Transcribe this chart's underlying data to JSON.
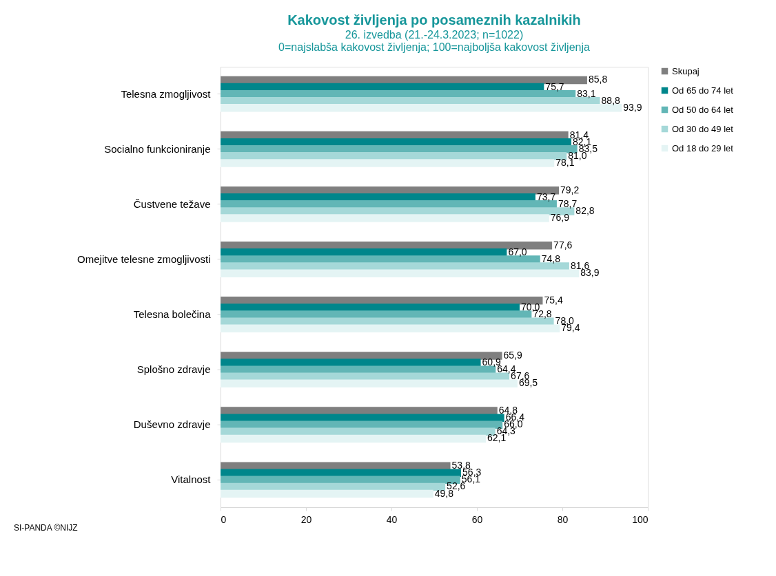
{
  "chart_data": {
    "type": "bar",
    "orientation": "horizontal",
    "title": "Kakovost življenja po posameznih kazalnikih",
    "subtitle": "26. izvedba (21.-24.3.2023; n=1022)\n0=najslabša kakovost življenja; 100=najboljša kakovost življenja",
    "categories": [
      "Telesna zmogljivost",
      "Socialno funkcioniranje",
      "Čustvene težave",
      "Omejitve telesne zmogljivosti",
      "Telesna bolečina",
      "Splošno zdravje",
      "Duševno zdravje",
      "Vitalnost"
    ],
    "series": [
      {
        "name": "Skupaj",
        "color": "#7f7f7f",
        "values": [
          85.8,
          81.4,
          79.2,
          77.6,
          75.4,
          65.9,
          64.8,
          53.8
        ],
        "value_labels": [
          "85,8",
          "81,4",
          "79,2",
          "77,6",
          "75,4",
          "65,9",
          "64,8",
          "53,8"
        ]
      },
      {
        "name": "Od 65 do 74 let",
        "color": "#00868b",
        "values": [
          75.7,
          82.1,
          73.7,
          67.0,
          70.0,
          60.9,
          66.4,
          56.3
        ],
        "value_labels": [
          "75,7",
          "82,1",
          "73,7",
          "67,0",
          "70,0",
          "60,9",
          "66,4",
          "56,3"
        ]
      },
      {
        "name": "Od 50 do 64 let",
        "color": "#62b6b6",
        "values": [
          83.1,
          83.5,
          78.7,
          74.8,
          72.8,
          64.4,
          66.0,
          56.1
        ],
        "value_labels": [
          "83,1",
          "83,5",
          "78,7",
          "74,8",
          "72,8",
          "64,4",
          "66,0",
          "56,1"
        ]
      },
      {
        "name": "Od 30 do 49 let",
        "color": "#a5d8d8",
        "values": [
          88.8,
          81.0,
          82.8,
          81.6,
          78.0,
          67.6,
          64.3,
          52.6
        ],
        "value_labels": [
          "88,8",
          "81,0",
          "82,8",
          "81,6",
          "78,0",
          "67,6",
          "64,3",
          "52,6"
        ]
      },
      {
        "name": "Od 18 do 29 let",
        "color": "#e4f4f4",
        "values": [
          93.9,
          78.1,
          76.9,
          83.9,
          79.4,
          69.5,
          62.1,
          49.8
        ],
        "value_labels": [
          "93,9",
          "78,1",
          "76,9",
          "83,9",
          "79,4",
          "69,5",
          "62,1",
          "49,8"
        ]
      }
    ],
    "xlim": [
      0,
      100
    ],
    "xticks": [
      0,
      20,
      40,
      60,
      80,
      100
    ],
    "grid": false,
    "legend": "right",
    "annotations": [
      "SI-PANDA ©NIJZ"
    ]
  }
}
